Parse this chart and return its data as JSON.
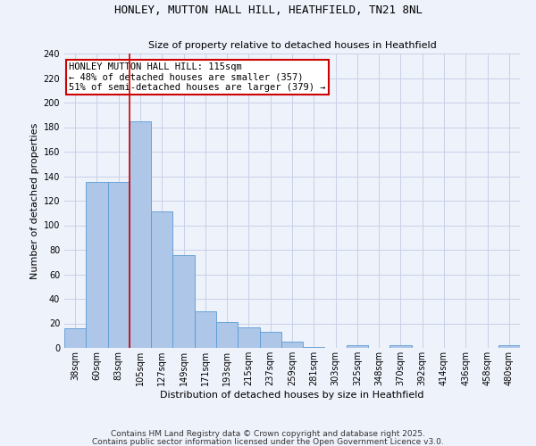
{
  "title": "HONLEY, MUTTON HALL HILL, HEATHFIELD, TN21 8NL",
  "subtitle": "Size of property relative to detached houses in Heathfield",
  "xlabel": "Distribution of detached houses by size in Heathfield",
  "ylabel": "Number of detached properties",
  "bar_color": "#aec6e8",
  "bar_edge_color": "#5b9bd5",
  "categories": [
    "38sqm",
    "60sqm",
    "83sqm",
    "105sqm",
    "127sqm",
    "149sqm",
    "171sqm",
    "193sqm",
    "215sqm",
    "237sqm",
    "259sqm",
    "281sqm",
    "303sqm",
    "325sqm",
    "348sqm",
    "370sqm",
    "392sqm",
    "414sqm",
    "436sqm",
    "458sqm",
    "480sqm"
  ],
  "values": [
    16,
    135,
    135,
    185,
    111,
    76,
    30,
    21,
    17,
    13,
    5,
    1,
    0,
    2,
    0,
    2,
    0,
    0,
    0,
    0,
    2
  ],
  "vline_bar_index": 3,
  "annotation_text": "HONLEY MUTTON HALL HILL: 115sqm\n← 48% of detached houses are smaller (357)\n51% of semi-detached houses are larger (379) →",
  "annotation_box_color": "#cc0000",
  "vline_color": "#cc0000",
  "ylim": [
    0,
    240
  ],
  "yticks": [
    0,
    20,
    40,
    60,
    80,
    100,
    120,
    140,
    160,
    180,
    200,
    220,
    240
  ],
  "footer1": "Contains HM Land Registry data © Crown copyright and database right 2025.",
  "footer2": "Contains public sector information licensed under the Open Government Licence v3.0.",
  "background_color": "#eef2fb",
  "grid_color": "#c8d0e8",
  "title_fontsize": 9,
  "subtitle_fontsize": 8,
  "ylabel_fontsize": 8,
  "xlabel_fontsize": 8,
  "tick_fontsize": 7,
  "footer_fontsize": 6.5
}
